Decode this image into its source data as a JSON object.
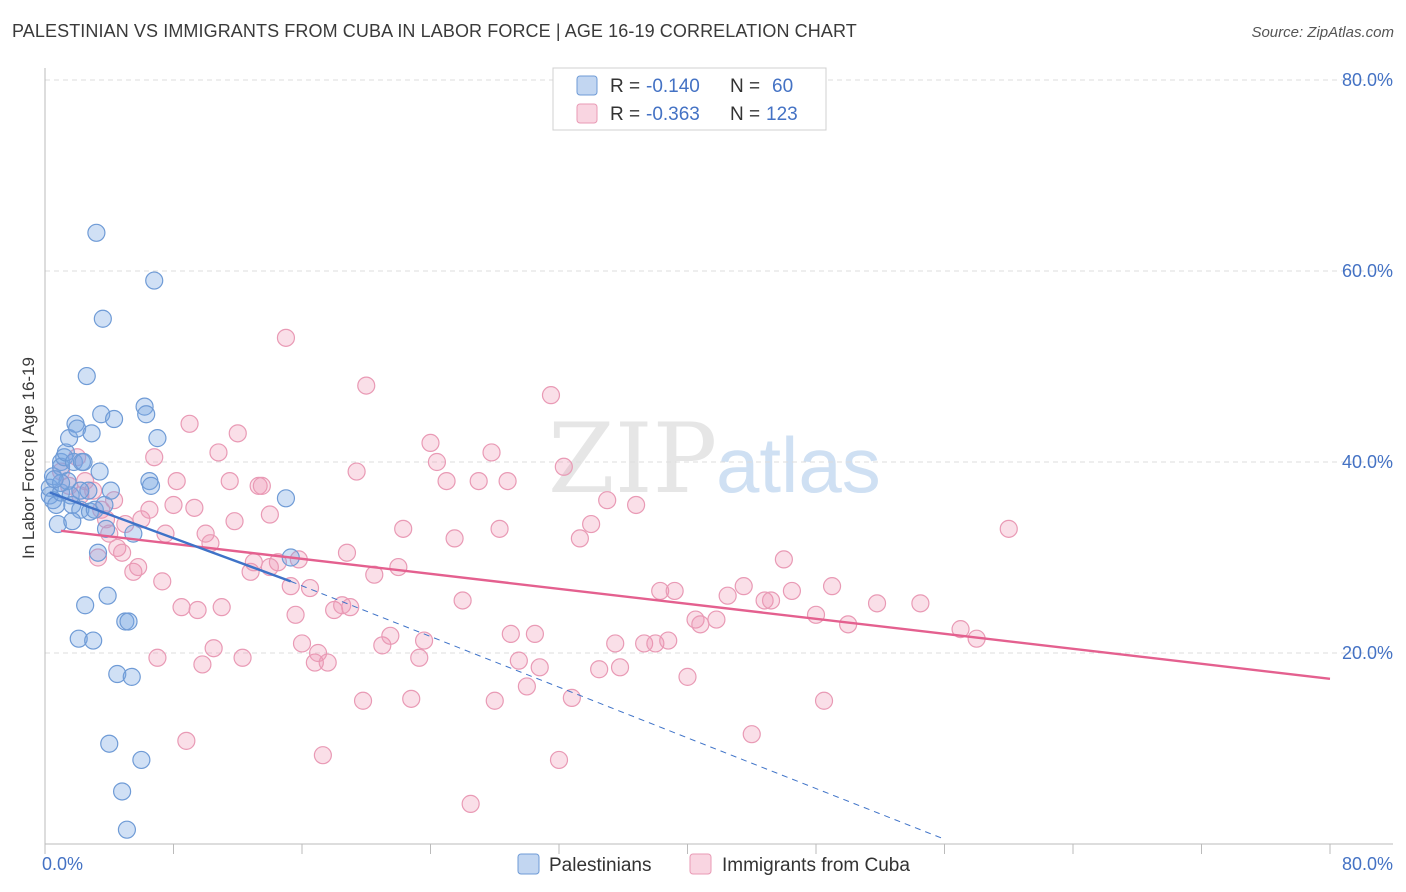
{
  "title": "PALESTINIAN VS IMMIGRANTS FROM CUBA IN LABOR FORCE | AGE 16-19 CORRELATION CHART",
  "source": "Source: ZipAtlas.com",
  "watermark": {
    "zip": "ZIP",
    "atlas": "atlas"
  },
  "colors": {
    "blue_fill": "rgba(120,165,225,0.35)",
    "blue_stroke": "#6f9bd6",
    "blue_line": "#3f73c8",
    "pink_fill": "rgba(240,150,180,0.30)",
    "pink_stroke": "#e99ab5",
    "pink_line": "#e4608f",
    "axis_text": "#4472c4",
    "grid": "#dddddd"
  },
  "legend": {
    "r_label": "R =",
    "n_label": "N =",
    "series1": {
      "r": "-0.140",
      "n": "60"
    },
    "series2": {
      "r": "-0.363",
      "n": "123"
    }
  },
  "chart_data": {
    "type": "scatter",
    "title": "PALESTINIAN VS IMMIGRANTS FROM CUBA IN LABOR FORCE | AGE 16-19 CORRELATION CHART",
    "xlabel": "",
    "ylabel": "In Labor Force | Age 16-19",
    "xlim": [
      0,
      80
    ],
    "ylim": [
      0,
      80
    ],
    "x_tick_labels": [
      "0.0%",
      "80.0%"
    ],
    "y_tick_labels": [
      "20.0%",
      "40.0%",
      "60.0%",
      "80.0%"
    ],
    "y_ticks": [
      20,
      40,
      60,
      80
    ],
    "grid": true,
    "legend_position": "top-center",
    "series": [
      {
        "name": "Palestinians",
        "color": "blue",
        "trend": {
          "x": [
            0.3,
            15.3
          ],
          "y": [
            36.8,
            27.5
          ],
          "dashed_to": [
            56,
            0.5
          ]
        },
        "points": [
          [
            0.3,
            36.5
          ],
          [
            0.3,
            37.3
          ],
          [
            0.5,
            38.5
          ],
          [
            0.5,
            36.0
          ],
          [
            0.7,
            35.5
          ],
          [
            0.8,
            33.5
          ],
          [
            1.0,
            36.8
          ],
          [
            1.0,
            40.0
          ],
          [
            1.0,
            39.5
          ],
          [
            1.2,
            40.5
          ],
          [
            1.3,
            41.0
          ],
          [
            1.4,
            38.0
          ],
          [
            1.5,
            42.5
          ],
          [
            1.6,
            36.5
          ],
          [
            1.7,
            35.5
          ],
          [
            1.8,
            40.0
          ],
          [
            1.9,
            44.0
          ],
          [
            2.0,
            43.5
          ],
          [
            2.1,
            21.5
          ],
          [
            2.2,
            35.0
          ],
          [
            2.3,
            40.0
          ],
          [
            2.4,
            40.0
          ],
          [
            2.5,
            25.0
          ],
          [
            2.6,
            49.0
          ],
          [
            2.7,
            37.0
          ],
          [
            2.8,
            34.8
          ],
          [
            2.9,
            43.0
          ],
          [
            3.0,
            21.3
          ],
          [
            3.1,
            35.0
          ],
          [
            3.2,
            64.0
          ],
          [
            3.3,
            30.5
          ],
          [
            3.4,
            39.0
          ],
          [
            3.5,
            45.0
          ],
          [
            3.6,
            55.0
          ],
          [
            3.7,
            35.5
          ],
          [
            3.8,
            33.0
          ],
          [
            3.9,
            26.0
          ],
          [
            4.0,
            10.5
          ],
          [
            4.1,
            37.0
          ],
          [
            4.3,
            44.5
          ],
          [
            4.5,
            17.8
          ],
          [
            4.8,
            5.5
          ],
          [
            5.0,
            23.3
          ],
          [
            5.1,
            1.5
          ],
          [
            5.2,
            23.3
          ],
          [
            5.4,
            17.5
          ],
          [
            5.5,
            32.5
          ],
          [
            6.0,
            8.8
          ],
          [
            6.2,
            45.8
          ],
          [
            6.3,
            45.0
          ],
          [
            6.5,
            38.0
          ],
          [
            6.6,
            37.5
          ],
          [
            6.8,
            59.0
          ],
          [
            7.0,
            42.5
          ],
          [
            15.0,
            36.2
          ],
          [
            15.3,
            30.0
          ],
          [
            1.0,
            37.8
          ],
          [
            0.6,
            38.2
          ],
          [
            2.2,
            37.0
          ],
          [
            1.7,
            33.8
          ]
        ]
      },
      {
        "name": "Immigrants from Cuba",
        "color": "pink",
        "trend": {
          "x": [
            1.0,
            80.0
          ],
          "y": [
            32.8,
            17.3
          ]
        },
        "points": [
          [
            1.0,
            39.0
          ],
          [
            1.5,
            37.5
          ],
          [
            2.0,
            40.5
          ],
          [
            2.2,
            36.5
          ],
          [
            2.5,
            38.0
          ],
          [
            3.0,
            37.0
          ],
          [
            3.3,
            30.0
          ],
          [
            3.5,
            35.0
          ],
          [
            3.8,
            34.0
          ],
          [
            4.0,
            32.5
          ],
          [
            4.3,
            36.0
          ],
          [
            4.5,
            31.0
          ],
          [
            4.8,
            30.5
          ],
          [
            5.0,
            33.5
          ],
          [
            5.5,
            28.5
          ],
          [
            5.8,
            29.0
          ],
          [
            6.0,
            34.0
          ],
          [
            6.5,
            35.0
          ],
          [
            6.8,
            40.5
          ],
          [
            7.0,
            19.5
          ],
          [
            7.3,
            27.5
          ],
          [
            7.5,
            32.5
          ],
          [
            8.0,
            35.5
          ],
          [
            8.2,
            38.0
          ],
          [
            8.5,
            24.8
          ],
          [
            8.8,
            10.8
          ],
          [
            9.0,
            44.0
          ],
          [
            9.3,
            35.2
          ],
          [
            9.5,
            24.5
          ],
          [
            9.8,
            18.8
          ],
          [
            10.0,
            32.5
          ],
          [
            10.3,
            31.5
          ],
          [
            10.5,
            20.5
          ],
          [
            10.8,
            41.0
          ],
          [
            11.0,
            24.8
          ],
          [
            11.5,
            38.0
          ],
          [
            11.8,
            33.8
          ],
          [
            12.0,
            43.0
          ],
          [
            12.3,
            19.5
          ],
          [
            12.8,
            28.5
          ],
          [
            13.0,
            29.5
          ],
          [
            13.3,
            37.5
          ],
          [
            13.5,
            37.5
          ],
          [
            14.0,
            34.5
          ],
          [
            14.5,
            29.5
          ],
          [
            15.0,
            53.0
          ],
          [
            15.3,
            27.0
          ],
          [
            15.6,
            24.0
          ],
          [
            15.8,
            29.8
          ],
          [
            16.0,
            21.0
          ],
          [
            16.5,
            26.8
          ],
          [
            16.8,
            19.0
          ],
          [
            17.0,
            20.0
          ],
          [
            17.3,
            9.3
          ],
          [
            17.6,
            19.0
          ],
          [
            18.0,
            24.5
          ],
          [
            18.5,
            25.0
          ],
          [
            18.8,
            30.5
          ],
          [
            19.0,
            24.8
          ],
          [
            19.4,
            39.0
          ],
          [
            19.8,
            15.0
          ],
          [
            20.0,
            48.0
          ],
          [
            20.5,
            28.2
          ],
          [
            21.0,
            20.8
          ],
          [
            21.5,
            21.8
          ],
          [
            22.0,
            29.0
          ],
          [
            22.3,
            33.0
          ],
          [
            22.8,
            15.2
          ],
          [
            23.3,
            19.5
          ],
          [
            23.6,
            21.3
          ],
          [
            24.0,
            42.0
          ],
          [
            24.4,
            40.0
          ],
          [
            25.0,
            38.0
          ],
          [
            25.5,
            32.0
          ],
          [
            26.0,
            25.5
          ],
          [
            26.5,
            4.2
          ],
          [
            27.0,
            38.0
          ],
          [
            27.8,
            41.0
          ],
          [
            28.0,
            15.0
          ],
          [
            28.3,
            33.0
          ],
          [
            28.8,
            38.0
          ],
          [
            29.0,
            22.0
          ],
          [
            29.5,
            19.2
          ],
          [
            30.0,
            16.5
          ],
          [
            30.5,
            22.0
          ],
          [
            30.8,
            18.5
          ],
          [
            31.5,
            47.0
          ],
          [
            32.0,
            8.8
          ],
          [
            32.3,
            39.5
          ],
          [
            32.8,
            15.3
          ],
          [
            33.3,
            32.0
          ],
          [
            34.0,
            33.5
          ],
          [
            34.5,
            18.3
          ],
          [
            35.0,
            36.0
          ],
          [
            35.5,
            21.0
          ],
          [
            35.8,
            18.5
          ],
          [
            36.8,
            35.5
          ],
          [
            37.3,
            21.0
          ],
          [
            38.0,
            21.0
          ],
          [
            38.3,
            26.5
          ],
          [
            38.8,
            21.3
          ],
          [
            39.2,
            26.5
          ],
          [
            40.0,
            17.5
          ],
          [
            40.5,
            23.5
          ],
          [
            40.8,
            23.0
          ],
          [
            41.8,
            23.5
          ],
          [
            42.5,
            26.0
          ],
          [
            43.5,
            27.0
          ],
          [
            44.0,
            11.5
          ],
          [
            44.8,
            25.5
          ],
          [
            45.2,
            25.5
          ],
          [
            46.0,
            29.8
          ],
          [
            46.5,
            26.5
          ],
          [
            48.0,
            24.0
          ],
          [
            48.5,
            15.0
          ],
          [
            49.0,
            27.0
          ],
          [
            50.0,
            23.0
          ],
          [
            51.8,
            25.2
          ],
          [
            54.5,
            25.2
          ],
          [
            57.0,
            22.5
          ],
          [
            58.0,
            21.5
          ],
          [
            60.0,
            33.0
          ],
          [
            14.0,
            29.0
          ]
        ]
      }
    ]
  }
}
